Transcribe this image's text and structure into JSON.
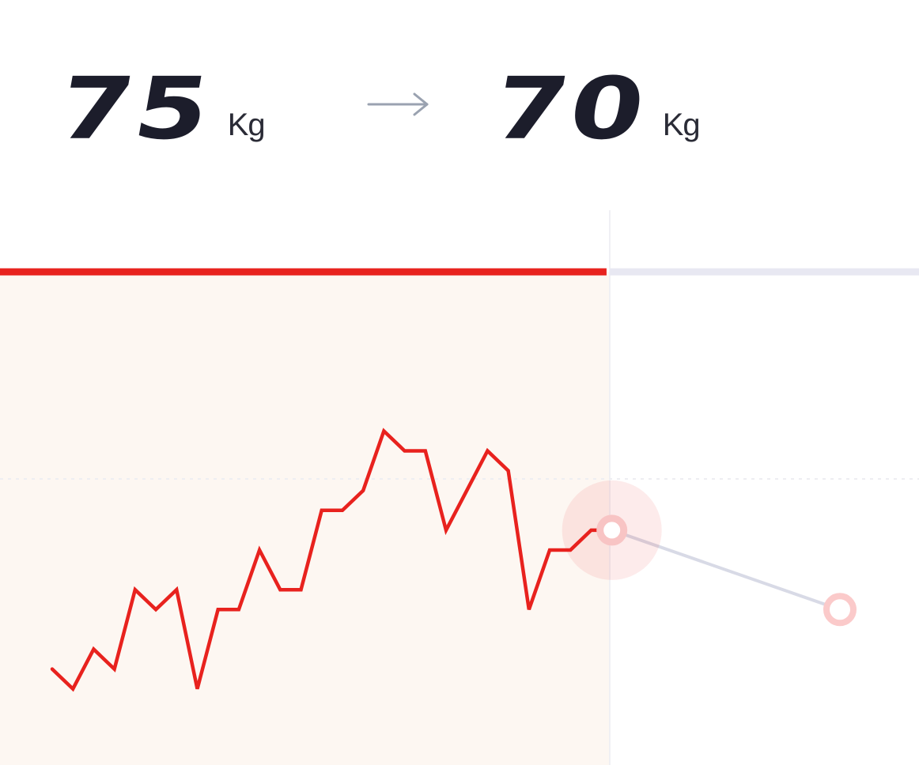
{
  "goal": {
    "start_value": "75",
    "start_unit": "Kg",
    "target_value": "70",
    "target_unit": "Kg",
    "arrow_icon": "arrow-right-icon"
  },
  "colors": {
    "accent": "#e8221e",
    "text": "#1c1d2b",
    "progress_track": "#e8e8f2",
    "past_area": "#fdf7f2",
    "projection": "#d8dae6",
    "divider": "#f0f0f4"
  },
  "progress": {
    "fraction_elapsed": 0.66
  },
  "chart_data": {
    "type": "line",
    "title": "",
    "xlabel": "",
    "ylabel": "",
    "grid": false,
    "series": [
      {
        "values": [
          [
            0,
            59
          ],
          [
            1,
            58
          ],
          [
            2,
            60
          ],
          [
            3,
            59
          ],
          [
            4,
            63
          ],
          [
            5,
            62
          ],
          [
            6,
            63
          ],
          [
            7,
            58
          ],
          [
            8,
            62
          ],
          [
            9,
            62
          ],
          [
            10,
            65
          ],
          [
            11,
            63
          ],
          [
            12,
            63
          ],
          [
            13,
            67
          ],
          [
            14,
            67
          ],
          [
            15,
            68
          ],
          [
            16,
            71
          ],
          [
            17,
            70
          ],
          [
            18,
            70
          ],
          [
            19,
            66
          ],
          [
            20,
            68
          ],
          [
            21,
            70
          ],
          [
            22,
            69
          ],
          [
            23,
            62
          ],
          [
            24,
            65
          ],
          [
            25,
            65
          ],
          [
            26,
            66
          ],
          [
            27,
            66
          ]
        ]
      },
      {
        "values": [
          [
            27,
            66
          ],
          [
            38,
            62
          ]
        ]
      }
    ]
  }
}
